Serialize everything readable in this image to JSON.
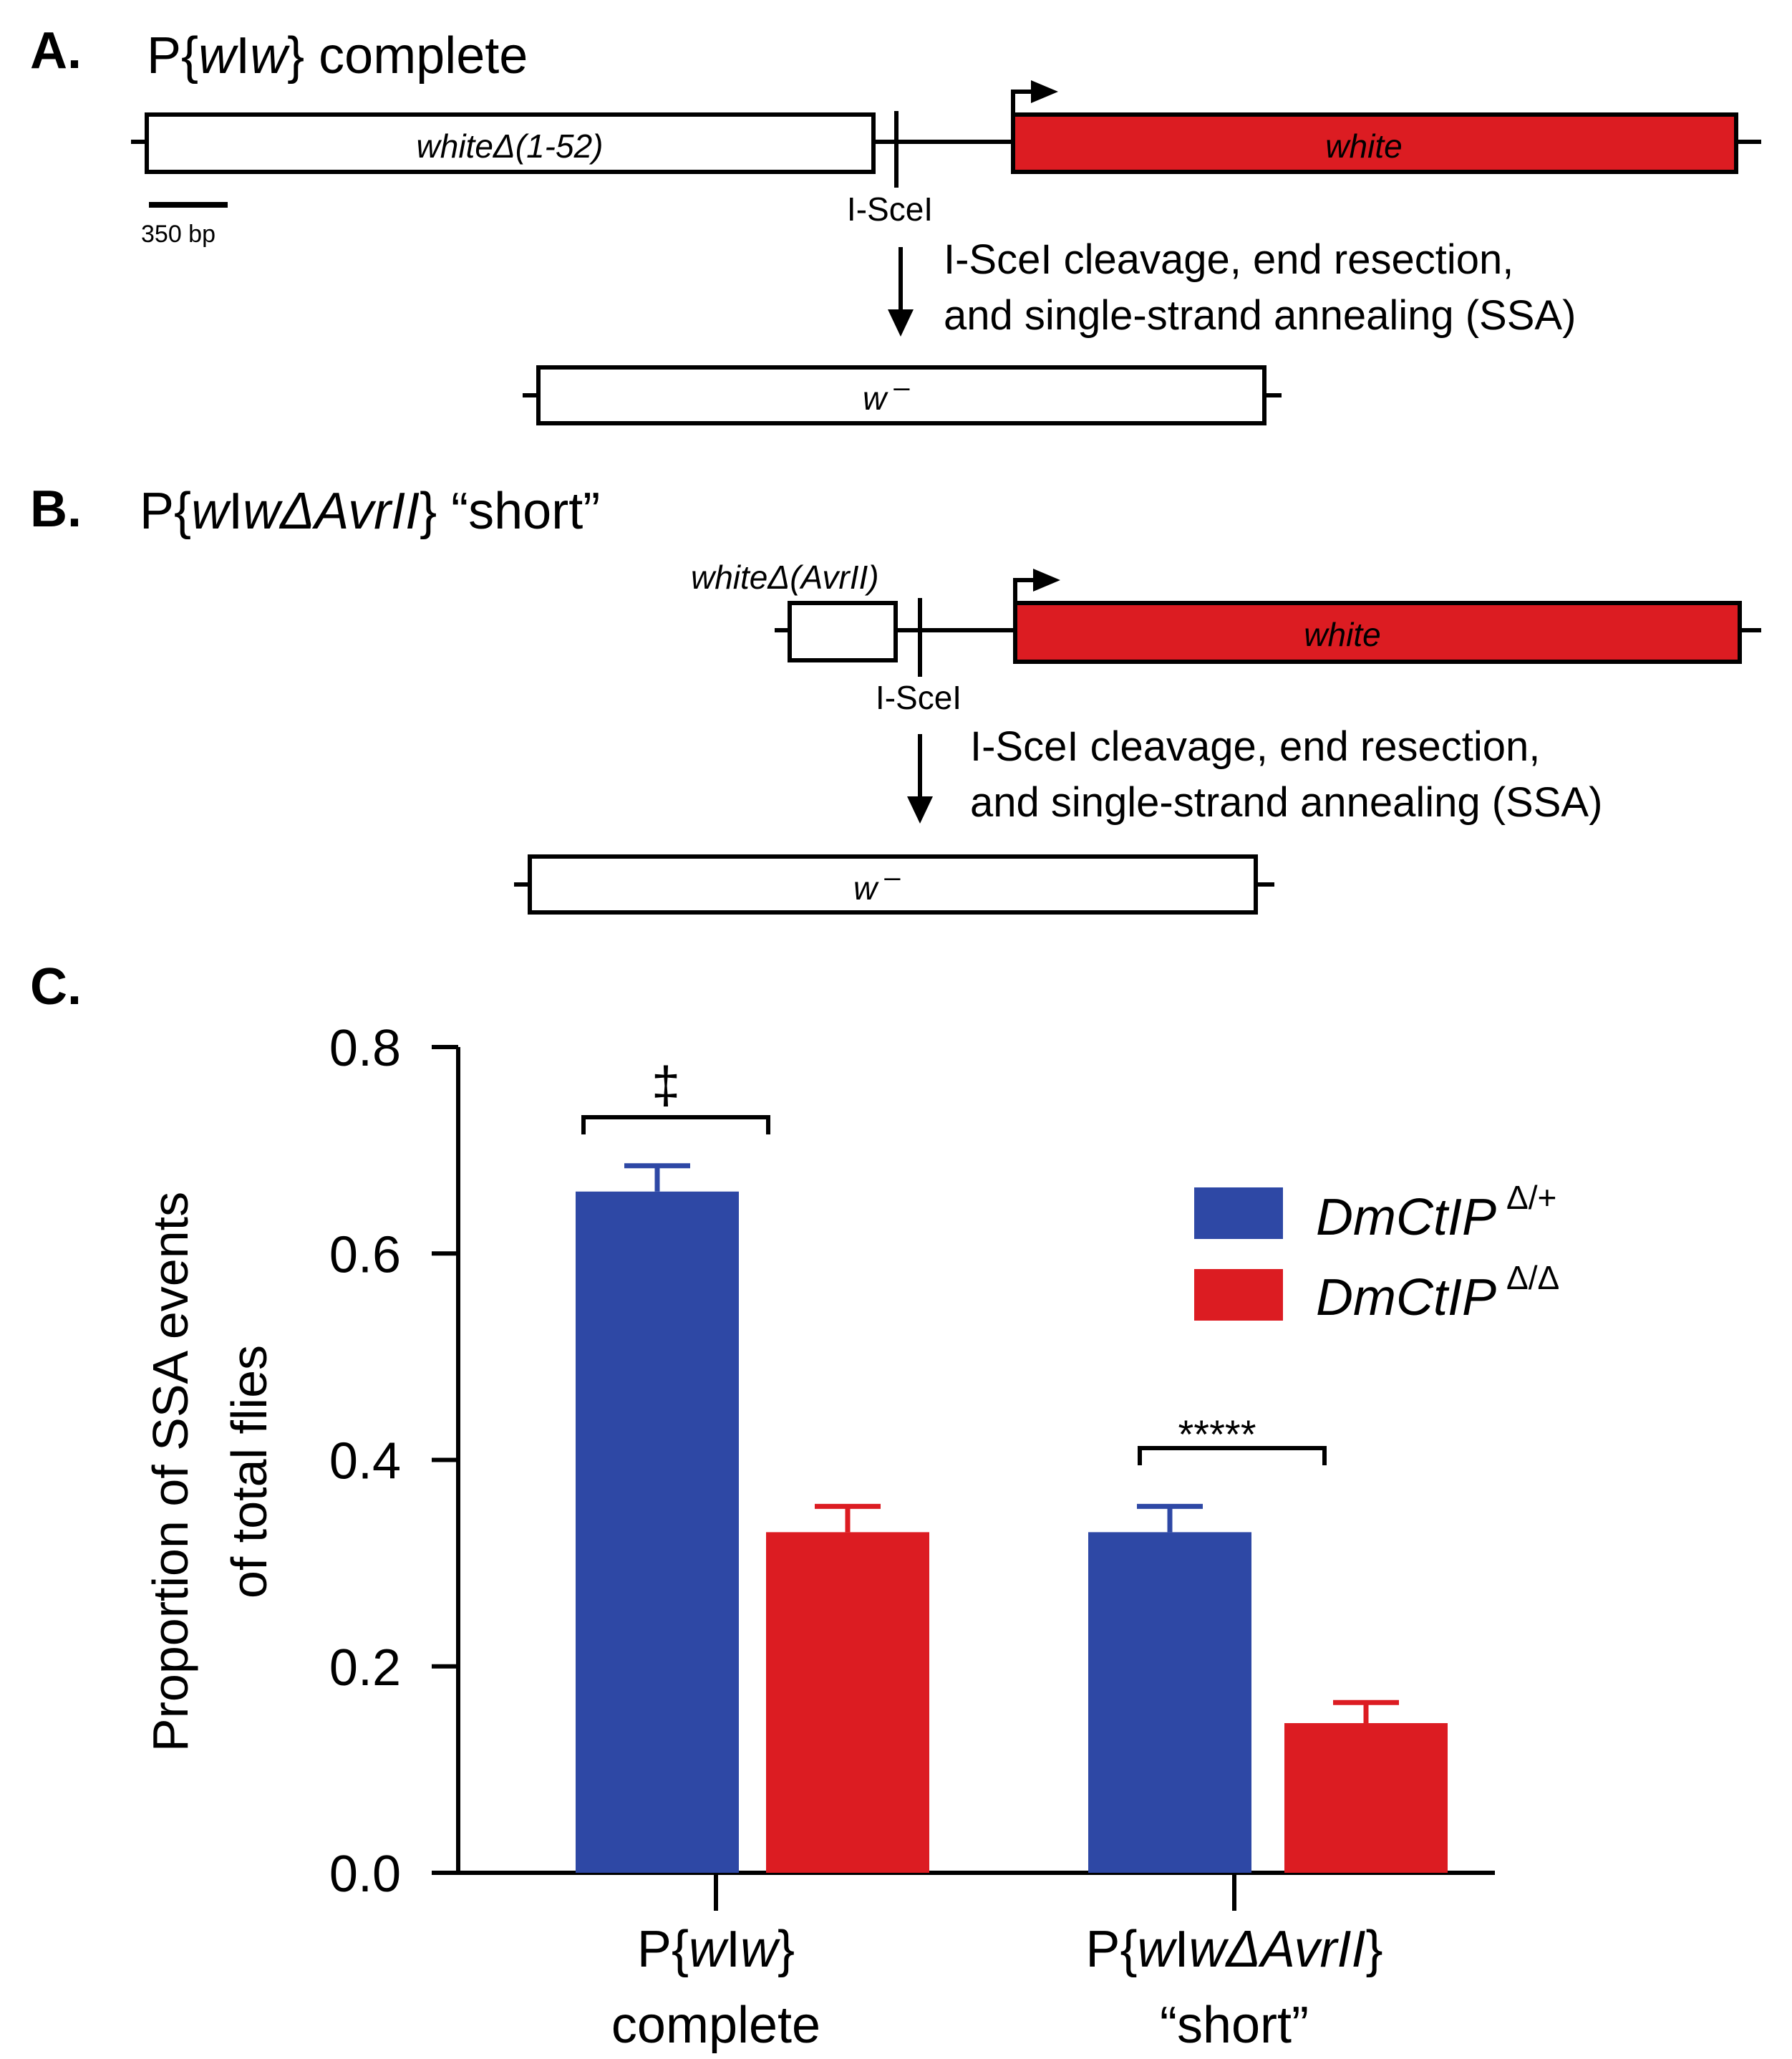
{
  "colors": {
    "blue": "#2E48A5",
    "red": "#DC1C22",
    "stroke": "#000000",
    "background": "#FFFFFF"
  },
  "panel_a": {
    "letter": "A.",
    "title_prefix": "P{",
    "title_w1": "w",
    "title_mid": "I",
    "title_w2": "w",
    "title_suffix": "} complete",
    "gene_left_label": "whiteΔ(1-52)",
    "gene_right_label": "white",
    "site_label": "I-SceI",
    "scale_bar_label": "350 bp",
    "step_line1": "I-SceI cleavage, end resection,",
    "step_line2": "and single-strand annealing (SSA)",
    "product_w": "w",
    "product_sup": "–"
  },
  "panel_b": {
    "letter": "B.",
    "title_prefix": "P{",
    "title_w1": "w",
    "title_mid": "I",
    "title_w2": "wΔAvrII",
    "title_suffix": "} “short”",
    "gene_left_label": "whiteΔ(AvrII)",
    "gene_right_label": "white",
    "site_label": "I-SceI",
    "step_line1": "I-SceI cleavage, end resection,",
    "step_line2": "and single-strand annealing (SSA)",
    "product_w": "w",
    "product_sup": "–"
  },
  "panel_c": {
    "letter": "C."
  },
  "chart_data": {
    "type": "bar",
    "categories": [
      {
        "line1_prefix": "P{",
        "line1_w1": "w",
        "line1_mid": "I",
        "line1_w2": "w",
        "line1_suffix": "}",
        "line2": "complete"
      },
      {
        "line1_prefix": "P{",
        "line1_w1": "w",
        "line1_mid": "I",
        "line1_w2": "wΔAvrII",
        "line1_suffix": "}",
        "line2": "“short”"
      }
    ],
    "series": [
      {
        "name": "DmCtIP",
        "superscript": "Δ/+",
        "color": "#2E48A5",
        "values": [
          0.66,
          0.33
        ],
        "errors": [
          0.025,
          0.025
        ]
      },
      {
        "name": "DmCtIP",
        "superscript": "Δ/Δ",
        "color": "#DC1C22",
        "values": [
          0.33,
          0.145
        ],
        "errors": [
          0.025,
          0.02
        ]
      }
    ],
    "ylabel_line1": "Proportion of SSA events",
    "ylabel_line2": "of total flies",
    "ylim": [
      0,
      0.8
    ],
    "yticks": [
      0.0,
      0.2,
      0.4,
      0.6,
      0.8
    ],
    "ytick_labels": [
      "0.0",
      "0.2",
      "0.4",
      "0.6",
      "0.8"
    ],
    "significance": [
      "‡",
      "*****"
    ],
    "legend_position": "top-right"
  }
}
